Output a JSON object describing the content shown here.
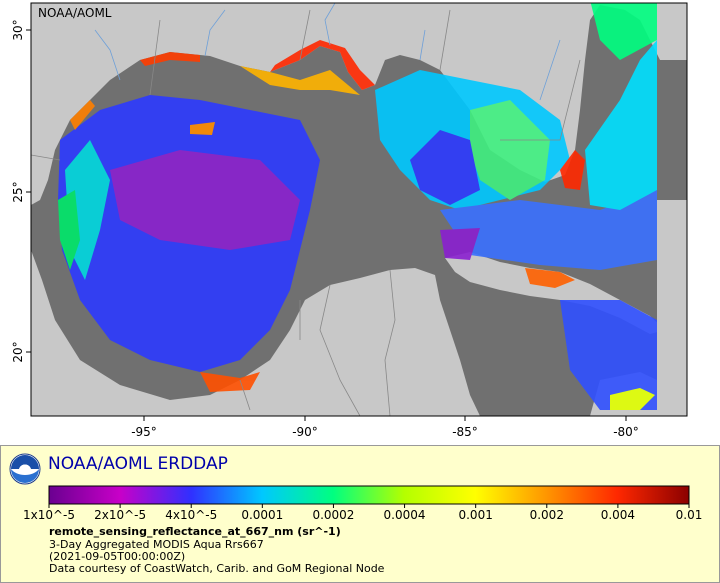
{
  "map": {
    "corner_label": "NOAA/AOML",
    "lon_labels": [
      "-95°",
      "-90°",
      "-85°",
      "-80°"
    ],
    "lat_labels": [
      "30°",
      "25°",
      "20°"
    ],
    "colors": {
      "ocean_nodata": "#707070",
      "land": "#c8c8c8",
      "border_line": "#888888",
      "river": "#6fa0d8"
    }
  },
  "legend": {
    "title": "NOAA/AOML ERDDAP",
    "colorbar_ticks": [
      "1x10^-5",
      "2x10^-5",
      "4x10^-5",
      "0.0001",
      "0.0002",
      "0.0004",
      "0.001",
      "0.002",
      "0.004",
      "0.01"
    ],
    "colorbar_colors": [
      "#6a0090",
      "#c800c8",
      "#3030ff",
      "#00c8ff",
      "#00ff80",
      "#b4ff00",
      "#ffff00",
      "#ff9600",
      "#ff2800",
      "#8b0000"
    ],
    "variable": "remote_sensing_reflectance_at_667_nm (sr^-1)",
    "product": "3-Day Aggregated MODIS Aqua Rrs667",
    "time": "(2021-09-05T00:00:00Z)",
    "credit": "Data courtesy of CoastWatch, Carib. and GoM Regional Node"
  }
}
